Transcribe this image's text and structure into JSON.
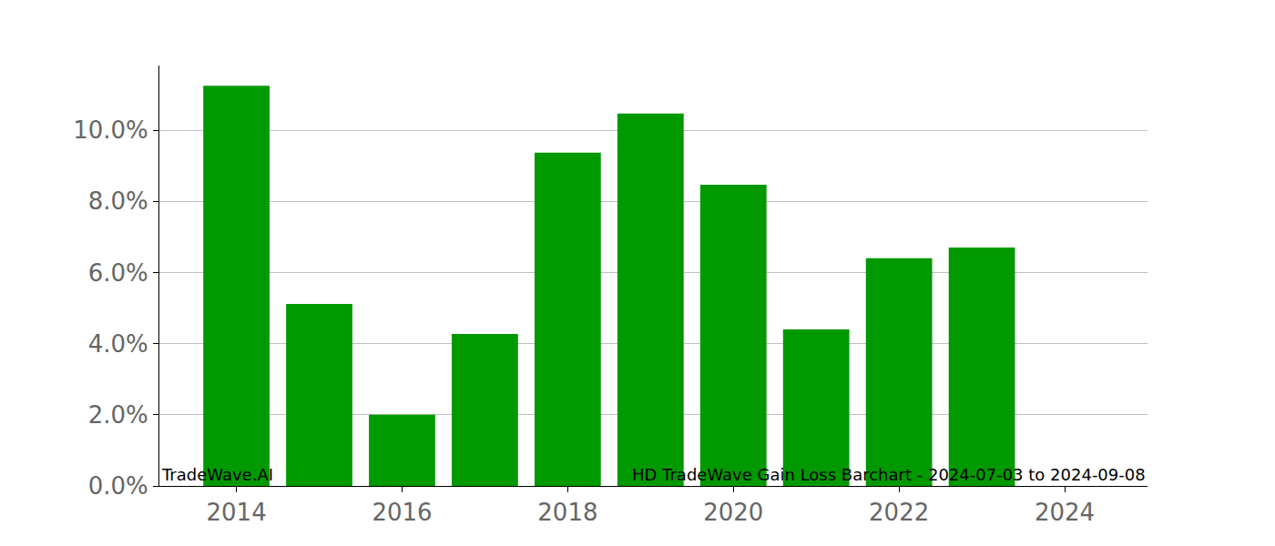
{
  "chart_data": {
    "type": "bar",
    "x": [
      2014,
      2015,
      2016,
      2017,
      2018,
      2019,
      2020,
      2021,
      2022,
      2023
    ],
    "values": [
      11.25,
      5.12,
      2.0,
      4.27,
      9.37,
      10.47,
      8.47,
      4.4,
      6.4,
      6.7
    ],
    "color": "#009900",
    "xlim": [
      2013.07,
      2025.0
    ],
    "xticks": [
      2014,
      2016,
      2018,
      2020,
      2022,
      2024
    ],
    "ylim": [
      0,
      11.82
    ],
    "yticks": [
      {
        "value": 0,
        "label": "0.0%"
      },
      {
        "value": 2,
        "label": "2.0%"
      },
      {
        "value": 4,
        "label": "4.0%"
      },
      {
        "value": 6,
        "label": "6.0%"
      },
      {
        "value": 8,
        "label": "8.0%"
      },
      {
        "value": 10,
        "label": "10.0%"
      }
    ],
    "grid": true,
    "annotations": [
      "TradeWave.AI",
      "HD TradeWave Gain Loss Barchart - 2024-07-03 to 2024-09-08"
    ]
  }
}
